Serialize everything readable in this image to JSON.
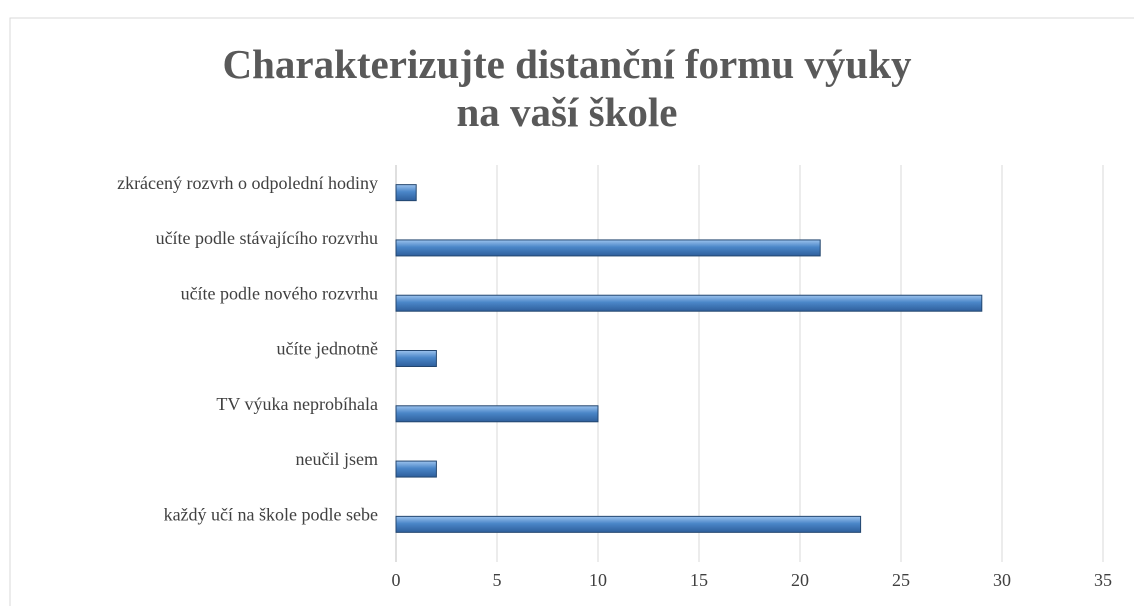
{
  "chart_data": {
    "type": "bar",
    "orientation": "horizontal",
    "title": "Charakterizujte distanční formu výuky na vaší škole",
    "categories": [
      "zkrácený rozvrh o odpolední hodiny",
      "učíte podle stávajícího rozvrhu",
      "učíte podle nového rozvrhu",
      "učíte jednotně",
      "TV výuka neprobíhala",
      "neučil jsem",
      "každý učí na škole podle sebe"
    ],
    "values": [
      1,
      21,
      29,
      2,
      10,
      2,
      23
    ],
    "color": "#4a86c8",
    "xlim": [
      0,
      35
    ],
    "xticks": [
      0,
      5,
      10,
      15,
      20,
      25,
      30,
      35
    ],
    "grid": true
  }
}
